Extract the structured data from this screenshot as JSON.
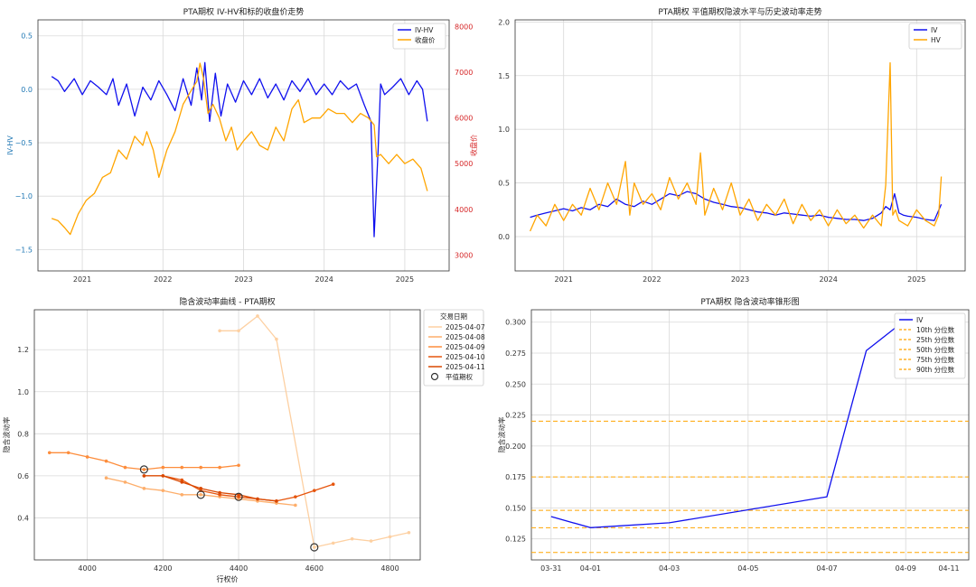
{
  "chart_data": [
    {
      "id": "tl",
      "type": "line",
      "title": "PTA期权 IV-HV和标的收盘价走势",
      "ylabel": "IV-HV",
      "y2label": "收盘价",
      "xlim": [
        2020.45,
        2025.55
      ],
      "ylim": [
        -1.7,
        0.65
      ],
      "y2lim": [
        2650,
        8150
      ],
      "x_ticks": [
        2021,
        2022,
        2023,
        2024,
        2025
      ],
      "x_tick_labels": [
        "2021",
        "2022",
        "2023",
        "2024",
        "2025"
      ],
      "y_ticks": [
        -1.5,
        -1.0,
        -0.5,
        0.0,
        0.5
      ],
      "y_tick_labels": [
        "−1.5",
        "−1.0",
        "−0.5",
        "0.0",
        "0.5"
      ],
      "y2_ticks": [
        3000,
        4000,
        5000,
        6000,
        7000,
        8000
      ],
      "y2_tick_labels": [
        "3000",
        "4000",
        "5000",
        "6000",
        "7000",
        "8000"
      ],
      "grid": true,
      "legend": "top-right",
      "colors": {
        "left_axis": "#1f77b4",
        "right_axis": "#d62728"
      },
      "series": [
        {
          "name": "IV-HV",
          "axis": "left",
          "color": "#1010ee",
          "x": [
            2020.62,
            2020.7,
            2020.78,
            2020.9,
            2021.0,
            2021.1,
            2021.2,
            2021.3,
            2021.38,
            2021.45,
            2021.55,
            2021.65,
            2021.75,
            2021.85,
            2021.95,
            2022.05,
            2022.15,
            2022.25,
            2022.35,
            2022.42,
            2022.48,
            2022.52,
            2022.58,
            2022.65,
            2022.72,
            2022.8,
            2022.9,
            2023.0,
            2023.1,
            2023.2,
            2023.3,
            2023.4,
            2023.5,
            2023.6,
            2023.7,
            2023.8,
            2023.9,
            2024.0,
            2024.1,
            2024.2,
            2024.3,
            2024.4,
            2024.5,
            2024.58,
            2024.62,
            2024.67,
            2024.7,
            2024.75,
            2024.85,
            2024.95,
            2025.05,
            2025.15,
            2025.22,
            2025.28
          ],
          "values": [
            0.12,
            0.08,
            -0.02,
            0.1,
            -0.05,
            0.08,
            0.02,
            -0.05,
            0.1,
            -0.15,
            0.05,
            -0.25,
            0.02,
            -0.1,
            0.08,
            -0.05,
            -0.2,
            0.1,
            -0.15,
            0.2,
            -0.1,
            0.25,
            -0.3,
            0.15,
            -0.25,
            0.05,
            -0.12,
            0.08,
            -0.05,
            0.1,
            -0.08,
            0.05,
            -0.1,
            0.08,
            -0.02,
            0.1,
            -0.05,
            0.05,
            -0.05,
            0.08,
            0.0,
            0.05,
            -0.15,
            -0.3,
            -1.38,
            -0.55,
            0.05,
            -0.05,
            0.02,
            0.1,
            -0.05,
            0.08,
            0.0,
            -0.3
          ]
        },
        {
          "name": "收盘价",
          "axis": "right",
          "color": "#ffa500",
          "x": [
            2020.62,
            2020.7,
            2020.78,
            2020.85,
            2020.95,
            2021.05,
            2021.15,
            2021.25,
            2021.35,
            2021.45,
            2021.55,
            2021.65,
            2021.75,
            2021.8,
            2021.88,
            2021.95,
            2022.05,
            2022.15,
            2022.25,
            2022.35,
            2022.42,
            2022.46,
            2022.5,
            2022.56,
            2022.62,
            2022.7,
            2022.78,
            2022.85,
            2022.92,
            2023.0,
            2023.1,
            2023.2,
            2023.3,
            2023.4,
            2023.5,
            2023.6,
            2023.68,
            2023.75,
            2023.85,
            2023.95,
            2024.05,
            2024.15,
            2024.25,
            2024.35,
            2024.45,
            2024.55,
            2024.62,
            2024.65,
            2024.7,
            2024.8,
            2024.9,
            2025.0,
            2025.1,
            2025.2,
            2025.28
          ],
          "values": [
            3800,
            3750,
            3600,
            3450,
            3900,
            4200,
            4350,
            4700,
            4800,
            5300,
            5100,
            5600,
            5400,
            5700,
            5300,
            4700,
            5300,
            5700,
            6300,
            6600,
            6800,
            7200,
            6900,
            6100,
            6300,
            6000,
            5500,
            5800,
            5300,
            5500,
            5700,
            5400,
            5300,
            5800,
            5500,
            6200,
            6400,
            5900,
            6000,
            6000,
            6200,
            6100,
            6100,
            5900,
            6100,
            6000,
            5850,
            5150,
            5200,
            5000,
            5200,
            5000,
            5100,
            4900,
            4400
          ]
        }
      ]
    },
    {
      "id": "tr",
      "type": "line",
      "title": "PTA期权 平值期权隐波水平与历史波动率走势",
      "xlim": [
        2020.45,
        2025.55
      ],
      "ylim": [
        -0.32,
        2.02
      ],
      "x_ticks": [
        2021,
        2022,
        2023,
        2024,
        2025
      ],
      "x_tick_labels": [
        "2021",
        "2022",
        "2023",
        "2024",
        "2025"
      ],
      "y_ticks": [
        0.0,
        0.5,
        1.0,
        1.5,
        2.0
      ],
      "y_tick_labels": [
        "0.0",
        "0.5",
        "1.0",
        "1.5",
        "2.0"
      ],
      "grid": true,
      "legend": "top-right",
      "series": [
        {
          "name": "IV",
          "color": "#1010ee",
          "x": [
            2020.62,
            2020.7,
            2020.8,
            2020.9,
            2021.0,
            2021.1,
            2021.2,
            2021.3,
            2021.4,
            2021.5,
            2021.6,
            2021.7,
            2021.8,
            2021.9,
            2022.0,
            2022.1,
            2022.2,
            2022.3,
            2022.4,
            2022.5,
            2022.6,
            2022.7,
            2022.8,
            2022.9,
            2023.0,
            2023.1,
            2023.2,
            2023.3,
            2023.4,
            2023.5,
            2023.6,
            2023.7,
            2023.8,
            2023.9,
            2024.0,
            2024.1,
            2024.2,
            2024.3,
            2024.4,
            2024.5,
            2024.6,
            2024.65,
            2024.7,
            2024.75,
            2024.8,
            2024.85,
            2024.9,
            2025.0,
            2025.1,
            2025.2,
            2025.28
          ],
          "values": [
            0.18,
            0.2,
            0.22,
            0.24,
            0.26,
            0.24,
            0.27,
            0.25,
            0.3,
            0.28,
            0.35,
            0.3,
            0.28,
            0.33,
            0.3,
            0.35,
            0.4,
            0.38,
            0.42,
            0.4,
            0.35,
            0.32,
            0.3,
            0.28,
            0.27,
            0.25,
            0.23,
            0.22,
            0.2,
            0.22,
            0.21,
            0.2,
            0.19,
            0.2,
            0.18,
            0.17,
            0.16,
            0.16,
            0.15,
            0.17,
            0.22,
            0.28,
            0.25,
            0.4,
            0.22,
            0.2,
            0.19,
            0.18,
            0.16,
            0.15,
            0.3
          ]
        },
        {
          "name": "HV",
          "color": "#ffa500",
          "x": [
            2020.62,
            2020.7,
            2020.8,
            2020.9,
            2021.0,
            2021.1,
            2021.2,
            2021.3,
            2021.4,
            2021.5,
            2021.6,
            2021.7,
            2021.75,
            2021.8,
            2021.9,
            2022.0,
            2022.1,
            2022.2,
            2022.3,
            2022.4,
            2022.5,
            2022.55,
            2022.6,
            2022.7,
            2022.8,
            2022.9,
            2023.0,
            2023.1,
            2023.2,
            2023.3,
            2023.4,
            2023.5,
            2023.6,
            2023.7,
            2023.8,
            2023.9,
            2024.0,
            2024.1,
            2024.2,
            2024.3,
            2024.4,
            2024.5,
            2024.6,
            2024.65,
            2024.7,
            2024.73,
            2024.76,
            2024.8,
            2024.9,
            2025.0,
            2025.1,
            2025.2,
            2025.25,
            2025.28
          ],
          "values": [
            0.05,
            0.2,
            0.1,
            0.3,
            0.15,
            0.3,
            0.2,
            0.45,
            0.25,
            0.5,
            0.3,
            0.7,
            0.2,
            0.5,
            0.3,
            0.4,
            0.25,
            0.55,
            0.35,
            0.5,
            0.3,
            0.78,
            0.2,
            0.45,
            0.25,
            0.5,
            0.2,
            0.35,
            0.15,
            0.3,
            0.2,
            0.35,
            0.12,
            0.3,
            0.15,
            0.25,
            0.1,
            0.25,
            0.12,
            0.2,
            0.08,
            0.2,
            0.1,
            0.48,
            1.62,
            0.2,
            0.25,
            0.15,
            0.1,
            0.25,
            0.15,
            0.1,
            0.2,
            0.56
          ]
        }
      ]
    },
    {
      "id": "bl",
      "type": "line",
      "title": "隐含波动率曲线 - PTA期权",
      "xlabel": "行权价",
      "ylabel": "隐含波动率",
      "legend_title": "交易日期",
      "xlim": [
        3860,
        4880
      ],
      "ylim": [
        0.2,
        1.39
      ],
      "x_ticks": [
        4000,
        4200,
        4400,
        4600,
        4800
      ],
      "x_tick_labels": [
        "4000",
        "4200",
        "4400",
        "4600",
        "4800"
      ],
      "y_ticks": [
        0.4,
        0.6,
        0.8,
        1.0,
        1.2
      ],
      "y_tick_labels": [
        "0.4",
        "0.6",
        "0.8",
        "1.0",
        "1.2"
      ],
      "grid": true,
      "legend": "outside-right",
      "series": [
        {
          "name": "2025-04-07",
          "color": "#fdd0a2",
          "x": [
            4350,
            4400,
            4450,
            4500,
            4600,
            4650,
            4700,
            4750,
            4800,
            4850
          ],
          "values": [
            1.29,
            1.29,
            1.36,
            1.25,
            0.26,
            0.28,
            0.3,
            0.29,
            0.31,
            0.33
          ]
        },
        {
          "name": "2025-04-08",
          "color": "#fdae6b",
          "x": [
            4050,
            4100,
            4150,
            4200,
            4250,
            4300,
            4350,
            4400,
            4450,
            4500,
            4550
          ],
          "values": [
            0.59,
            0.57,
            0.54,
            0.53,
            0.51,
            0.51,
            0.5,
            0.49,
            0.48,
            0.47,
            0.46
          ]
        },
        {
          "name": "2025-04-09",
          "color": "#fd8d3c",
          "x": [
            3900,
            3950,
            4000,
            4050,
            4100,
            4150,
            4200,
            4250,
            4300,
            4350,
            4400
          ],
          "values": [
            0.71,
            0.71,
            0.69,
            0.67,
            0.64,
            0.63,
            0.64,
            0.64,
            0.64,
            0.64,
            0.65
          ]
        },
        {
          "name": "2025-04-10",
          "color": "#e6550d",
          "x": [
            4150,
            4200,
            4250,
            4300,
            4350,
            4400,
            4450,
            4500,
            4550,
            4600,
            4650
          ],
          "values": [
            0.6,
            0.6,
            0.58,
            0.53,
            0.51,
            0.5,
            0.49,
            0.48,
            0.5,
            0.53,
            0.56
          ]
        },
        {
          "name": "2025-04-11",
          "color": "#d94801",
          "x": [
            4150,
            4200,
            4250,
            4300,
            4350,
            4400,
            4450,
            4500
          ],
          "values": [
            0.6,
            0.6,
            0.57,
            0.54,
            0.52,
            0.51,
            0.49,
            0.48
          ]
        }
      ],
      "atm_label": "平值期权",
      "atm_points": [
        {
          "x": 4150,
          "y": 0.63
        },
        {
          "x": 4300,
          "y": 0.51
        },
        {
          "x": 4400,
          "y": 0.5
        },
        {
          "x": 4600,
          "y": 0.26
        }
      ]
    },
    {
      "id": "br",
      "type": "line",
      "title": "PTA期权 隐含波动率锥形图",
      "ylabel": "隐含波动率",
      "xlim": [
        -0.5,
        10.6
      ],
      "ylim": [
        0.108,
        0.31
      ],
      "x_ticks": [
        0,
        1,
        3,
        5,
        7,
        9,
        11
      ],
      "x_tick_labels": [
        "03-31",
        "04-01",
        "04-03",
        "04-05",
        "04-07",
        "04-09",
        "04-11"
      ],
      "y_ticks": [
        0.125,
        0.15,
        0.175,
        0.2,
        0.225,
        0.25,
        0.275,
        0.3
      ],
      "y_tick_labels": [
        "0.125",
        "0.150",
        "0.175",
        "0.200",
        "0.225",
        "0.250",
        "0.275",
        "0.300"
      ],
      "grid": true,
      "legend": "top-right",
      "series": [
        {
          "name": "IV",
          "color": "#1010ee",
          "x": [
            0,
            1,
            3,
            7,
            8,
            9,
            10
          ],
          "values": [
            0.143,
            0.134,
            0.138,
            0.159,
            0.277,
            0.302,
            0.283
          ]
        }
      ],
      "percentiles": [
        {
          "name": "10th 分位数",
          "value": 0.114
        },
        {
          "name": "25th 分位数",
          "value": 0.134
        },
        {
          "name": "50th 分位数",
          "value": 0.148
        },
        {
          "name": "75th 分位数",
          "value": 0.175
        },
        {
          "name": "90th 分位数",
          "value": 0.22
        }
      ],
      "percentile_color": "#ffa500"
    }
  ]
}
